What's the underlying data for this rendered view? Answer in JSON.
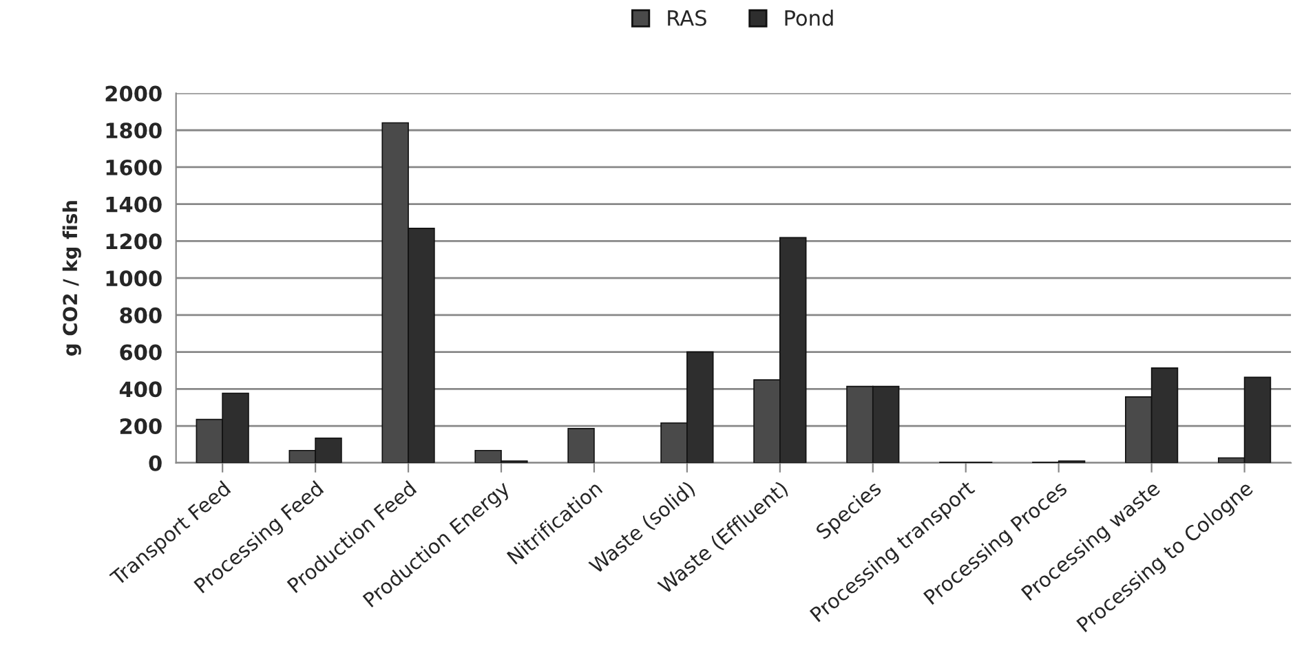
{
  "chart_data": {
    "type": "bar",
    "ylabel": "g CO2 / kg fish",
    "categories": [
      "Transport Feed",
      "Processing Feed",
      "Production Feed",
      "Production Energy",
      "Nitrification",
      "Waste (solid)",
      "Waste (Effluent)",
      "Species",
      "Processing transport",
      "Processing Proces",
      "Processing waste",
      "Processing to Cologne"
    ],
    "series": [
      {
        "name": "RAS",
        "color": "#4a4a4a",
        "values": [
          235,
          67,
          1840,
          67,
          186,
          216,
          449,
          414,
          3,
          3,
          357,
          27
        ]
      },
      {
        "name": "Pond",
        "color": "#2e2e2e",
        "values": [
          377,
          134,
          1269,
          10,
          null,
          600,
          1219,
          414,
          3,
          10,
          513,
          463
        ]
      }
    ],
    "ylim": [
      0,
      2000
    ],
    "yticks": [
      0,
      200,
      400,
      600,
      800,
      1000,
      1200,
      1400,
      1600,
      1800,
      2000
    ],
    "grid": "y",
    "legend": "top"
  }
}
